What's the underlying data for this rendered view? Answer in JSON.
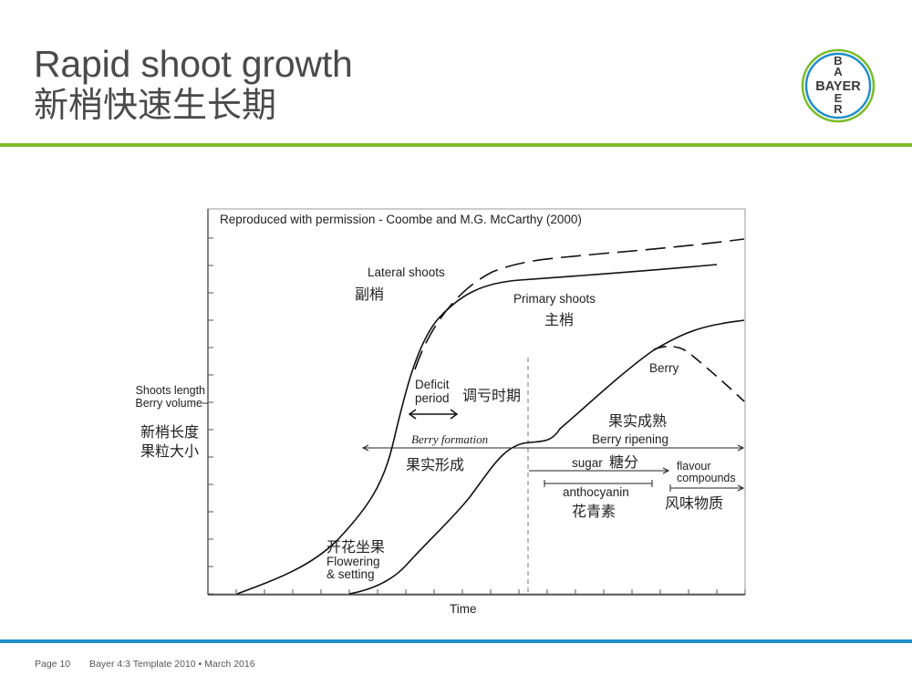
{
  "title": {
    "en": "Rapid shoot growth",
    "zh": "新梢快速生长期"
  },
  "logo": {
    "text_vertical": [
      "B",
      "A",
      "Y",
      "E",
      "R"
    ],
    "text_horizontal": "BAYER",
    "colors": {
      "outer_ring": "#7dbb2a",
      "inner_ring": "#1f8ec9",
      "text": "#3a3a3a"
    }
  },
  "diagram": {
    "credit": "Reproduced with permission - Coombe and M.G. McCarthy (2000)",
    "y_label": {
      "en_line1": "Shoots length",
      "en_line2": "Berry volume",
      "zh_line1": "新梢长度",
      "zh_line2": "果粒大小"
    },
    "x_label": "Time",
    "curves": {
      "lateral": {
        "en": "Lateral shoots",
        "zh": "副梢"
      },
      "primary": {
        "en": "Primary shoots",
        "zh": "主梢"
      },
      "berry": {
        "en": "Berry"
      }
    },
    "deficit": {
      "line1": "Deficit",
      "line2": "period",
      "zh": "调亏时期"
    },
    "phases": {
      "formation": {
        "en": "Berry formation",
        "zh": "果实形成"
      },
      "ripening": {
        "en": "Berry ripening",
        "zh": "果实成熟"
      },
      "sugar": {
        "en": "sugar",
        "zh": "糖分"
      },
      "anthocyanin": {
        "en": "anthocyanin",
        "zh": "花青素"
      },
      "flavour": {
        "line1": "flavour",
        "line2": "compounds",
        "zh": "风味物质"
      },
      "flowering": {
        "zh": "开花坐果",
        "line1": "Flowering",
        "line2": "& setting"
      }
    }
  },
  "footer": {
    "page": "Page 10",
    "template": "Bayer 4:3 Template 2010 • March 2016"
  }
}
